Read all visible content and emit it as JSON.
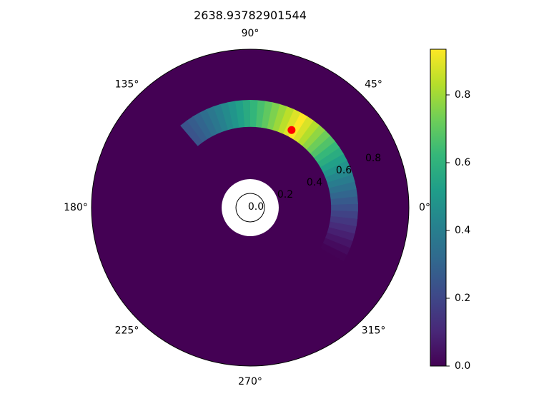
{
  "chart_data": {
    "type": "heatmap",
    "projection": "polar",
    "title": "2638.93782901544",
    "theta_tick_labels": [
      "0°",
      "45°",
      "90°",
      "135°",
      "180°",
      "225°",
      "270°",
      "315°"
    ],
    "theta_ticks_deg": [
      0,
      45,
      90,
      135,
      180,
      225,
      270,
      315
    ],
    "r_tick_labels": [
      "0.0",
      "0.2",
      "0.4",
      "0.6",
      "0.8"
    ],
    "r_ticks": [
      0.0,
      0.2,
      0.4,
      0.6,
      0.8
    ],
    "rlim": [
      0,
      1.0
    ],
    "r_tick_label_angle_deg": 22.5,
    "grid": false,
    "colormap": "viridis",
    "colorbar": {
      "range": [
        0.0,
        0.9347
      ],
      "tick_labels": [
        "0.0",
        "0.2",
        "0.4",
        "0.6",
        "0.8"
      ],
      "ticks": [
        0.0,
        0.2,
        0.4,
        0.6,
        0.8
      ]
    },
    "field": {
      "background_value": 0.0,
      "inner_hole_radius": 0.18,
      "inner_circle_radius": 0.09,
      "band_r_inner": 0.51,
      "band_r_outer": 0.68,
      "band_theta_start_deg": -30,
      "band_theta_end_deg": 130,
      "peak_theta_deg": 60,
      "peak_value": 0.9347
    },
    "marker": {
      "theta_deg": 62,
      "r": 0.555,
      "color": "#ff0000"
    }
  },
  "colors": {
    "viridis": [
      "#440154",
      "#482878",
      "#3e4989",
      "#31688e",
      "#26828e",
      "#1f9e89",
      "#35b779",
      "#6ece58",
      "#b5de2b",
      "#fde725"
    ],
    "outline": "#000000",
    "background": "#ffffff"
  }
}
